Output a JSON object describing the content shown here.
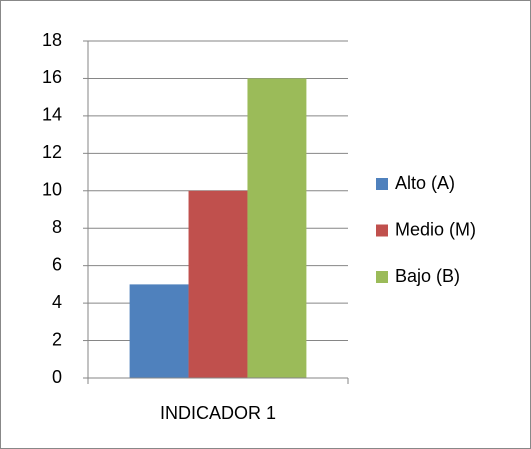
{
  "chart_data": {
    "type": "bar",
    "categories": [
      "INDICADOR 1"
    ],
    "series": [
      {
        "name": "Alto (A)",
        "color": "#4f81bd",
        "values": [
          5
        ]
      },
      {
        "name": "Medio (M)",
        "color": "#c0504d",
        "values": [
          10
        ]
      },
      {
        "name": "Bajo (B)",
        "color": "#9bbb59",
        "values": [
          16
        ]
      }
    ],
    "ylim": [
      0,
      18
    ],
    "yticks": [
      0,
      2,
      4,
      6,
      8,
      10,
      12,
      14,
      16,
      18
    ],
    "grid": true,
    "legend": "right"
  }
}
